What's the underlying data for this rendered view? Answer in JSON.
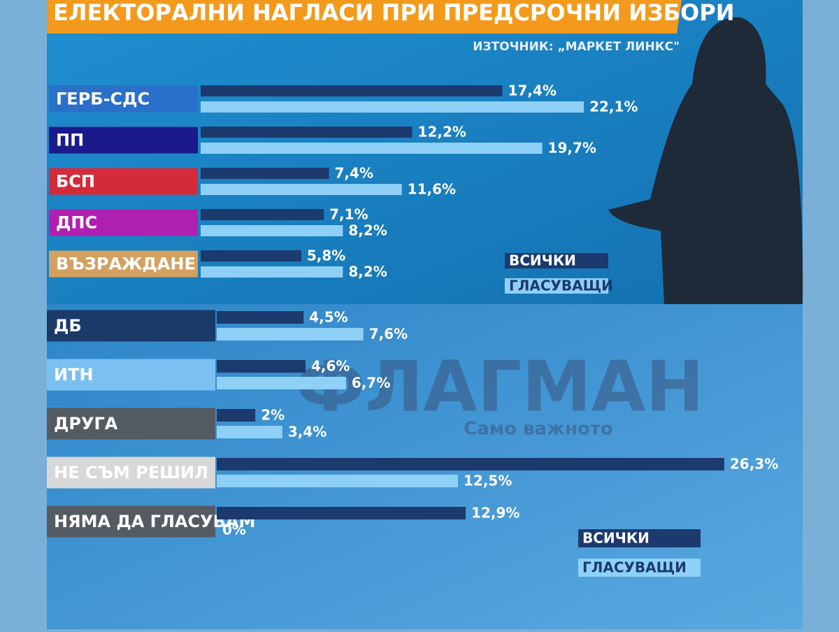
{
  "chart_data": [
    {
      "type": "hbar",
      "title": "ЕЛЕКТОРАЛНИ НАГЛАСИ ПРИ ПРЕДСРОЧНИ ИЗБОРИ",
      "subtitle": "ИЗТОЧНИК: „МАРКЕТ ЛИНКС\"",
      "categories": [
        "ГЕРБ-СДС",
        "ПП",
        "БСП",
        "ДПС",
        "ВЪЗРАЖДАНЕ"
      ],
      "category_colors": [
        "#2a6fc9",
        "#1a1a8a",
        "#d42a3a",
        "#b020b0",
        "#d4a060"
      ],
      "series": [
        {
          "name": "ВСИЧКИ",
          "color": "#1c3a6e",
          "values": [
            17.4,
            12.2,
            7.4,
            7.1,
            5.8
          ],
          "value_labels": [
            "17,4%",
            "12,2%",
            "7,4%",
            "7,1%",
            "5,8%"
          ]
        },
        {
          "name": "ГЛАСУВАЩИ",
          "color": "#8fd0f7",
          "values": [
            22.1,
            19.7,
            11.6,
            8.2,
            8.2
          ],
          "value_labels": [
            "22,1%",
            "19,7%",
            "11,6%",
            "8,2%",
            "8,2%"
          ]
        }
      ]
    },
    {
      "type": "hbar",
      "categories": [
        "ДБ",
        "ИТН",
        "ДРУГА",
        "НЕ СЪМ РЕШИЛ",
        "НЯМА ДА ГЛАСУВАМ"
      ],
      "category_colors": [
        "#1a3a6a",
        "#7ac0f0",
        "#555b63",
        "#d8d8d8",
        "#555b63"
      ],
      "series": [
        {
          "name": "ВСИЧКИ",
          "color": "#1c3a6e",
          "values": [
            4.5,
            4.6,
            2,
            26.3,
            12.9
          ],
          "value_labels": [
            "4,5%",
            "4,6%",
            "2%",
            "26,3%",
            "12,9%"
          ]
        },
        {
          "name": "ГЛАСУВАЩИ",
          "color": "#8fd0f7",
          "values": [
            7.6,
            6.7,
            3.4,
            12.5,
            0
          ],
          "value_labels": [
            "7,6%",
            "6,7%",
            "3,4%",
            "12,5%",
            "0%"
          ]
        }
      ]
    }
  ],
  "watermark": {
    "title": "ФЛАГМАН",
    "tagline": "Само важното"
  }
}
